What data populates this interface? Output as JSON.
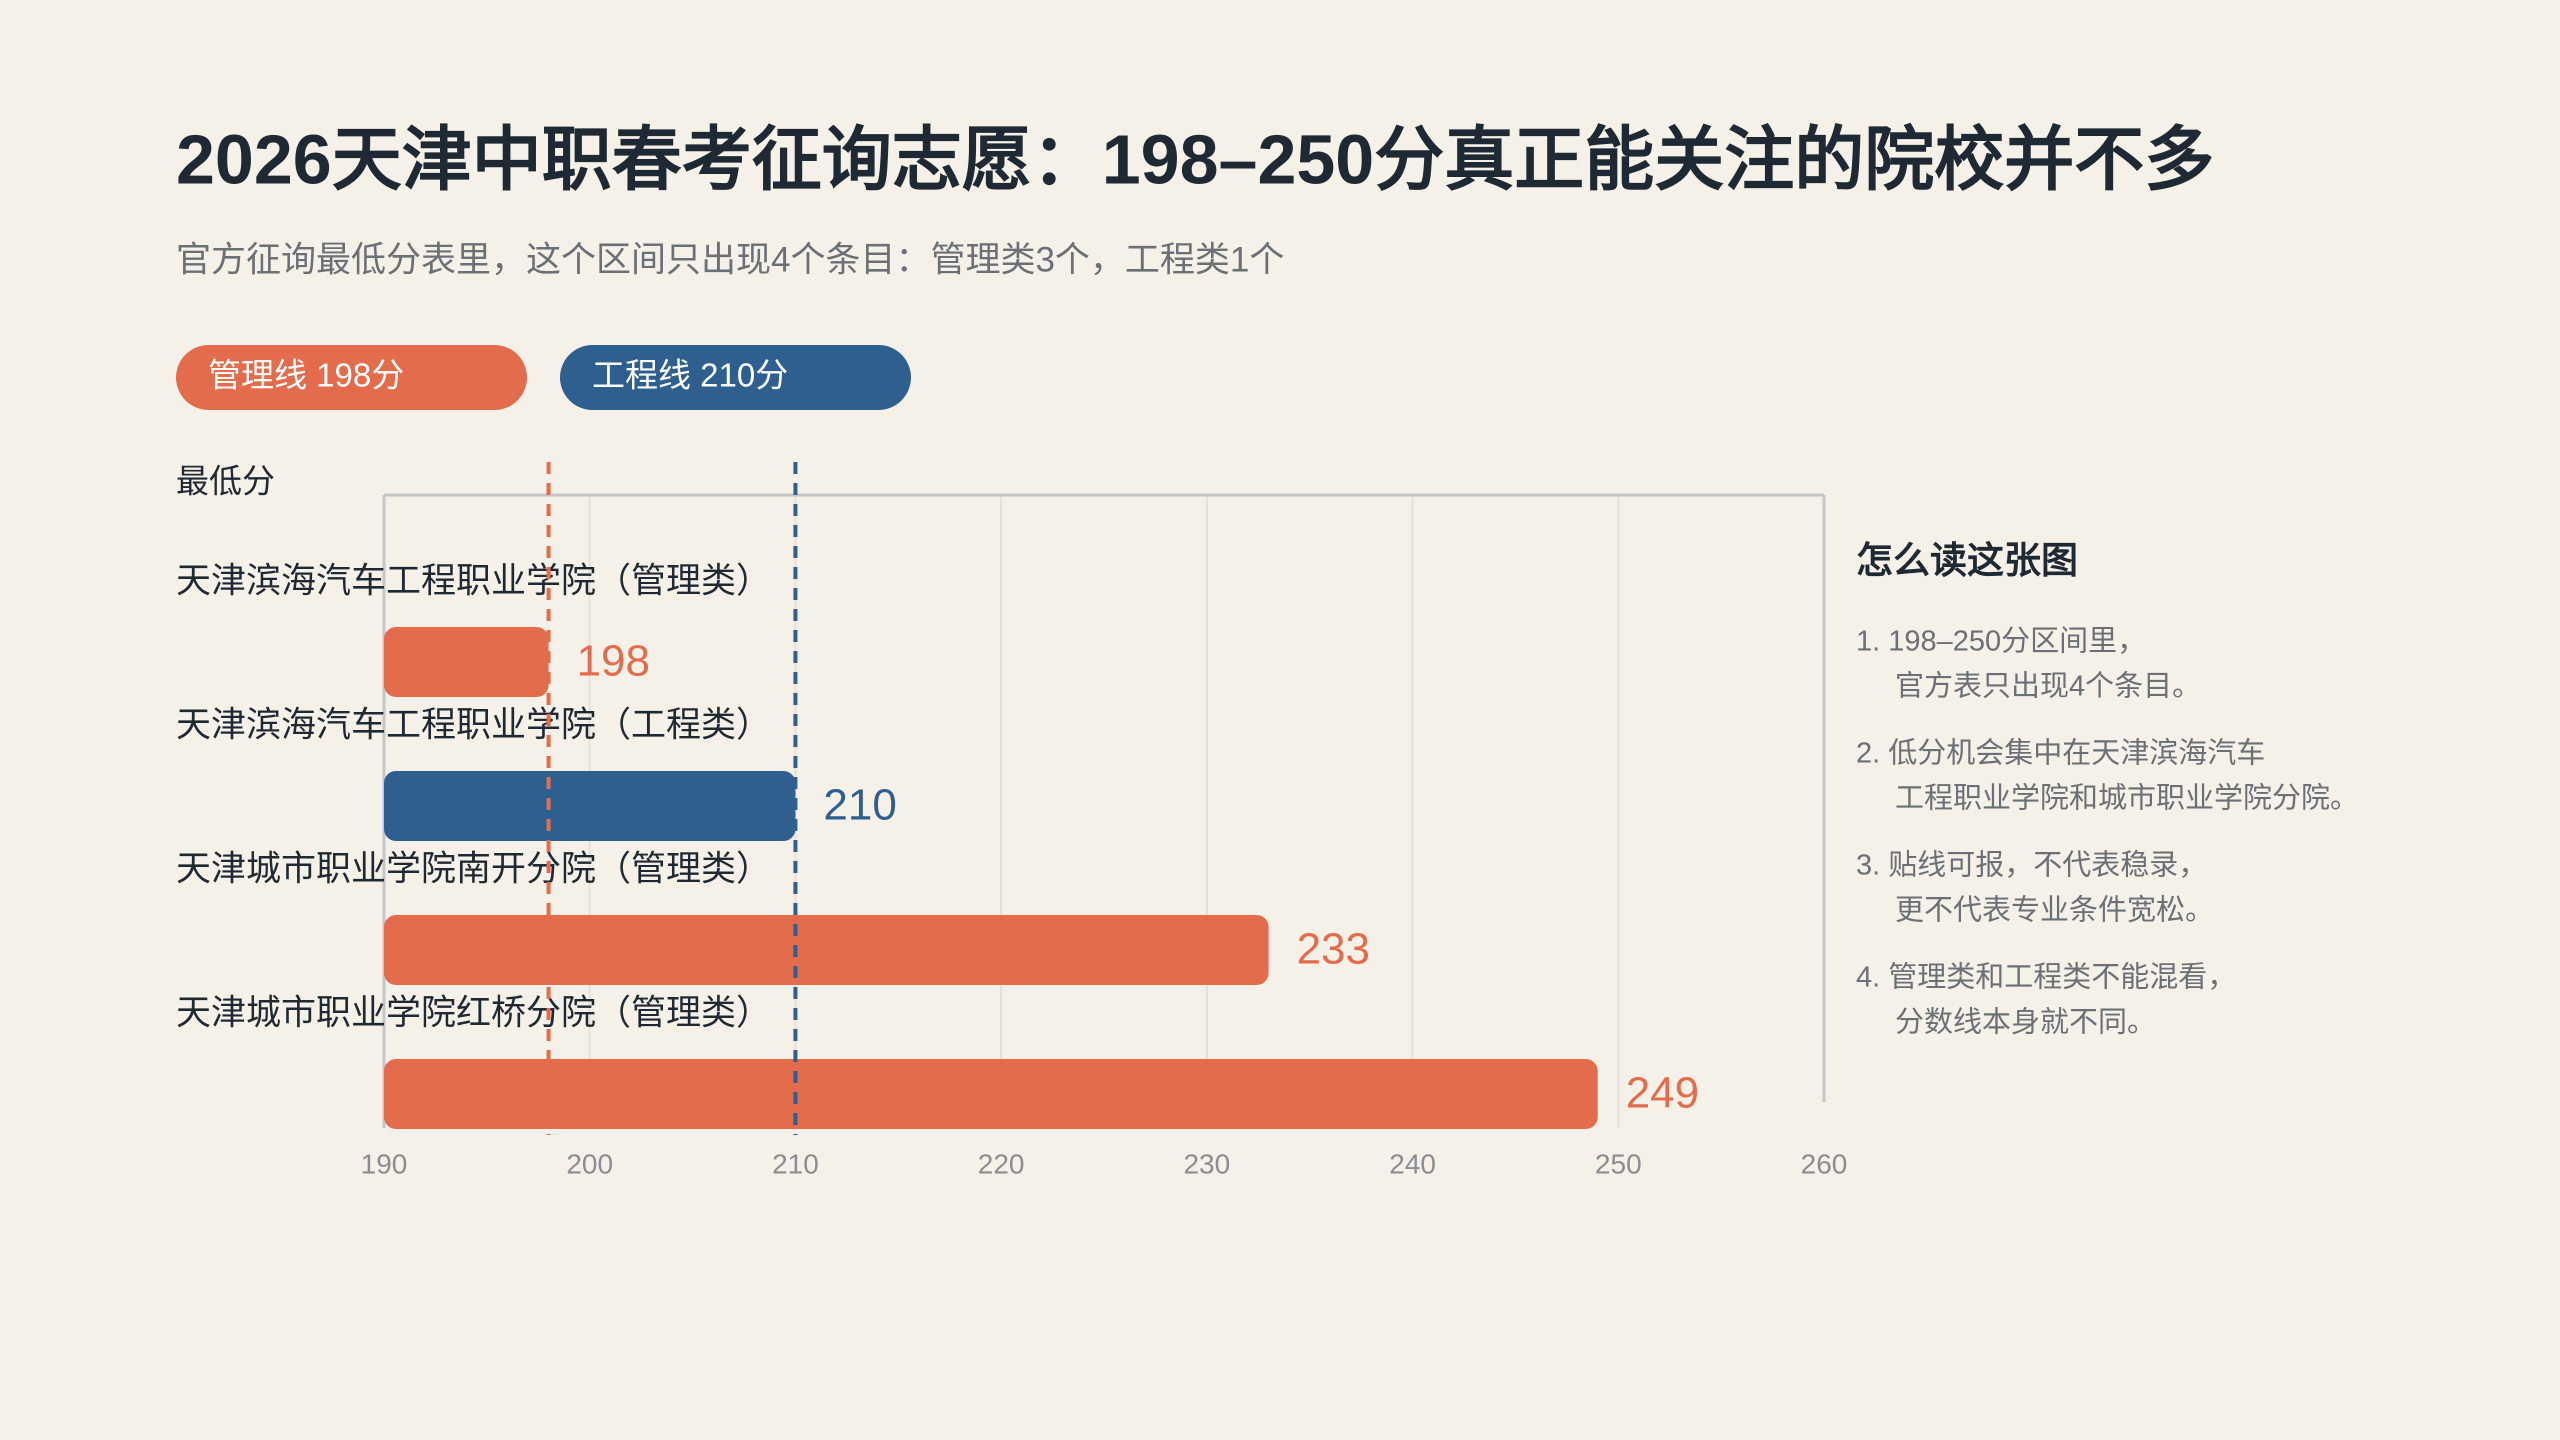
{
  "chart_data": {
    "type": "bar",
    "orientation": "horizontal",
    "title": "2026天津中职春考征询志愿：198–250分真正能关注的院校并不多",
    "subtitle": "官方征询最低分表里，这个区间只出现4个条目：管理类3个，工程类1个",
    "y_label": "最低分",
    "categories": [
      "天津滨海汽车工程职业学院（管理类）",
      "天津滨海汽车工程职业学院（工程类）",
      "天津城市职业学院南开分院（管理类）",
      "天津城市职业学院红桥分院（管理类）"
    ],
    "values": [
      198,
      210,
      233,
      249
    ],
    "colors": [
      "#e36c4c",
      "#2e5f8f",
      "#e36c4c",
      "#e36c4c"
    ],
    "reference_lines": [
      {
        "value": 198,
        "label": "管理线 198分",
        "color": "#e36c4c"
      },
      {
        "value": 210,
        "label": "工程线 210分",
        "color": "#2e5f8f"
      }
    ],
    "xlim": [
      190,
      260
    ],
    "xticks": [
      190,
      200,
      210,
      220,
      230,
      240,
      250,
      260
    ],
    "grid": true,
    "notes": {
      "title": "怎么读这张图",
      "items": [
        [
          "1. 198–250分区间里，",
          "官方表只出现4个条目。"
        ],
        [
          "2. 低分机会集中在天津滨海汽车",
          "工程职业学院和城市职业学院分院。"
        ],
        [
          "3. 贴线可报，不代表稳录，",
          "更不代表专业条件宽松。"
        ],
        [
          "4. 管理类和工程类不能混看，",
          "分数线本身就不同。"
        ]
      ]
    }
  }
}
